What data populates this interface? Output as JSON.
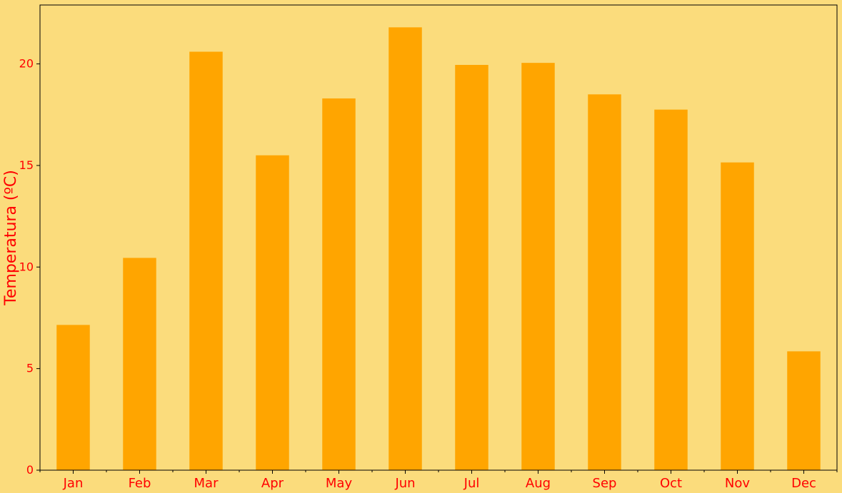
{
  "chart_data": {
    "type": "bar",
    "categories": [
      "Jan",
      "Feb",
      "Mar",
      "Apr",
      "May",
      "Jun",
      "Jul",
      "Aug",
      "Sep",
      "Oct",
      "Nov",
      "Dec"
    ],
    "values": [
      7.15,
      10.45,
      20.6,
      15.5,
      18.3,
      21.8,
      19.95,
      20.05,
      18.5,
      17.75,
      15.15,
      5.85
    ],
    "ylabel": "Temperatura (ºC)",
    "xlabel": "",
    "ylim": [
      0,
      22.9
    ],
    "yticks": [
      0,
      5,
      10,
      15,
      20
    ],
    "grid": false,
    "colors": {
      "background": "#fbdc7c",
      "bar": "#ffa500",
      "text": "#ff0000",
      "axis": "#000000"
    }
  }
}
